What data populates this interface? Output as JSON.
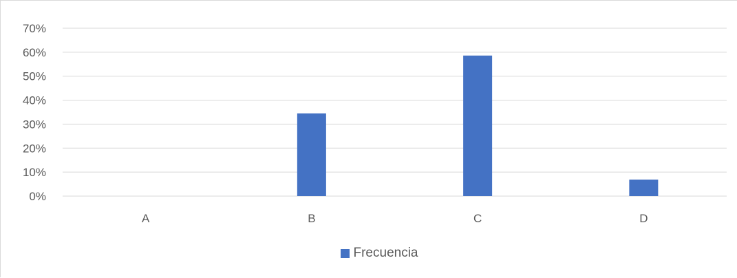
{
  "colors": {
    "bar": "#4472c4",
    "grid": "#d9d9d9",
    "text": "#595959"
  },
  "chart_data": {
    "type": "bar",
    "categories": [
      "A",
      "B",
      "C",
      "D"
    ],
    "series": [
      {
        "name": "Frecuencia",
        "values": [
          0,
          34.5,
          58.6,
          6.9
        ]
      }
    ],
    "ylim": [
      0,
      70
    ],
    "yticks": [
      "0%",
      "10%",
      "20%",
      "30%",
      "40%",
      "50%",
      "60%",
      "70%"
    ],
    "grid": true,
    "legend": "bottom"
  }
}
